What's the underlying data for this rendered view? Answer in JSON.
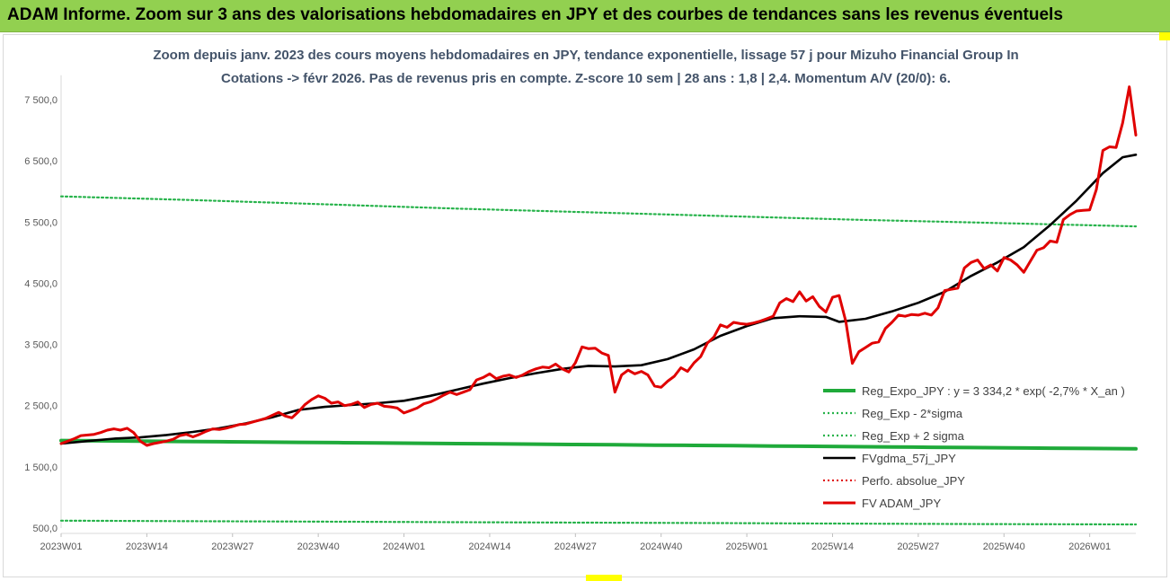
{
  "banner": {
    "title": "ADAM Informe. Zoom sur 3 ans des valorisations hebdomadaires en JPY et des courbes de tendances sans les revenus éventuels"
  },
  "colors": {
    "banner_bg": "#92d050",
    "reg_expo": "#1faa3a",
    "sigma": "#27b34b",
    "fvgdma": "#000000",
    "perfo": "#e00000",
    "fvadam": "#e00000",
    "title_text": "#44546a"
  },
  "chart_data": {
    "type": "line",
    "title": "Zoom depuis janv. 2023 des cours moyens hebdomadaires en JPY, tendance exponentielle, lissage 57 j pour Mizuho Financial Group In",
    "subtitle": "Cotations -> févr 2026.  Pas de revenus pris en compte. Z-score 10 sem | 28 ans : 1,8 | 2,4. Momentum A/V (20/0): 6.",
    "xlabel": "",
    "ylabel": "",
    "ylim": [
      500,
      7900
    ],
    "yticks": [
      "7 500,0",
      "6 500,0",
      "5 500,0",
      "4 500,0",
      "3 500,0",
      "2 500,0",
      "1 500,0",
      "500,0"
    ],
    "ytick_values": [
      7500,
      6500,
      5500,
      4500,
      3500,
      2500,
      1500,
      500
    ],
    "xticks": [
      "2023W01",
      "2023W14",
      "2023W27",
      "2023W40",
      "2024W01",
      "2024W14",
      "2024W27",
      "2024W40",
      "2025W01",
      "2025W14",
      "2025W27",
      "2025W40",
      "2026W01"
    ],
    "xtick_weeks": [
      0,
      13,
      26,
      39,
      52,
      65,
      78,
      91,
      104,
      117,
      130,
      143,
      156
    ],
    "x_range_weeks": [
      0,
      163
    ],
    "legend_position": "bottom-right",
    "series": [
      {
        "name": "Reg_Expo_JPY : y = 3 334,2 * exp( -2,7% *  X_an )",
        "style": "solid-thick",
        "points": [
          [
            0,
            1930
          ],
          [
            6,
            1925
          ],
          [
            12,
            1920
          ],
          [
            18,
            1915
          ],
          [
            24,
            1910
          ],
          [
            30,
            1905
          ],
          [
            36,
            1900
          ],
          [
            42,
            1895
          ],
          [
            48,
            1890
          ],
          [
            54,
            1885
          ],
          [
            60,
            1880
          ],
          [
            66,
            1875
          ],
          [
            72,
            1870
          ],
          [
            78,
            1865
          ],
          [
            84,
            1860
          ],
          [
            90,
            1855
          ],
          [
            96,
            1850
          ],
          [
            102,
            1845
          ],
          [
            108,
            1840
          ],
          [
            114,
            1835
          ],
          [
            120,
            1830
          ],
          [
            126,
            1825
          ],
          [
            132,
            1820
          ],
          [
            138,
            1815
          ],
          [
            144,
            1810
          ],
          [
            150,
            1805
          ],
          [
            156,
            1800
          ],
          [
            163,
            1795
          ]
        ]
      },
      {
        "name": "Reg_Exp - 2*sigma",
        "style": "dotted",
        "points": [
          [
            0,
            620
          ],
          [
            20,
            612
          ],
          [
            40,
            604
          ],
          [
            60,
            596
          ],
          [
            80,
            588
          ],
          [
            100,
            580
          ],
          [
            120,
            572
          ],
          [
            140,
            565
          ],
          [
            163,
            558
          ]
        ]
      },
      {
        "name": "Reg_Exp + 2 sigma",
        "style": "dotted",
        "points": [
          [
            0,
            5920
          ],
          [
            20,
            5860
          ],
          [
            40,
            5790
          ],
          [
            60,
            5720
          ],
          [
            80,
            5660
          ],
          [
            100,
            5600
          ],
          [
            120,
            5540
          ],
          [
            140,
            5490
          ],
          [
            163,
            5430
          ]
        ]
      },
      {
        "name": "FVgdma_57j_JPY",
        "style": "solid",
        "points": [
          [
            0,
            1880
          ],
          [
            4,
            1920
          ],
          [
            8,
            1960
          ],
          [
            12,
            1980
          ],
          [
            16,
            2020
          ],
          [
            20,
            2070
          ],
          [
            24,
            2130
          ],
          [
            28,
            2210
          ],
          [
            32,
            2310
          ],
          [
            36,
            2430
          ],
          [
            40,
            2480
          ],
          [
            44,
            2510
          ],
          [
            48,
            2540
          ],
          [
            52,
            2580
          ],
          [
            56,
            2660
          ],
          [
            60,
            2760
          ],
          [
            64,
            2860
          ],
          [
            68,
            2950
          ],
          [
            72,
            3030
          ],
          [
            76,
            3100
          ],
          [
            80,
            3150
          ],
          [
            84,
            3140
          ],
          [
            88,
            3160
          ],
          [
            92,
            3260
          ],
          [
            96,
            3420
          ],
          [
            100,
            3640
          ],
          [
            104,
            3800
          ],
          [
            108,
            3930
          ],
          [
            112,
            3960
          ],
          [
            116,
            3950
          ],
          [
            118,
            3870
          ],
          [
            122,
            3920
          ],
          [
            126,
            4040
          ],
          [
            130,
            4180
          ],
          [
            134,
            4360
          ],
          [
            138,
            4620
          ],
          [
            142,
            4840
          ],
          [
            146,
            5090
          ],
          [
            150,
            5450
          ],
          [
            154,
            5850
          ],
          [
            158,
            6300
          ],
          [
            161,
            6560
          ],
          [
            163,
            6600
          ]
        ]
      },
      {
        "name": "Perfo. absolue_JPY",
        "style": "dotted-red",
        "points": []
      },
      {
        "name": "FV ADAM_JPY",
        "style": "solid-thick",
        "points": [
          [
            0,
            1880
          ],
          [
            2,
            1960
          ],
          [
            3,
            2010
          ],
          [
            5,
            2030
          ],
          [
            6,
            2060
          ],
          [
            7,
            2100
          ],
          [
            8,
            2120
          ],
          [
            9,
            2100
          ],
          [
            10,
            2130
          ],
          [
            11,
            2060
          ],
          [
            12,
            1920
          ],
          [
            13,
            1850
          ],
          [
            14,
            1880
          ],
          [
            15,
            1900
          ],
          [
            16,
            1920
          ],
          [
            17,
            1950
          ],
          [
            18,
            2010
          ],
          [
            19,
            2030
          ],
          [
            20,
            1990
          ],
          [
            21,
            2030
          ],
          [
            22,
            2080
          ],
          [
            23,
            2120
          ],
          [
            24,
            2110
          ],
          [
            25,
            2130
          ],
          [
            26,
            2160
          ],
          [
            27,
            2190
          ],
          [
            28,
            2200
          ],
          [
            29,
            2230
          ],
          [
            30,
            2260
          ],
          [
            31,
            2290
          ],
          [
            32,
            2340
          ],
          [
            33,
            2390
          ],
          [
            34,
            2330
          ],
          [
            35,
            2300
          ],
          [
            36,
            2400
          ],
          [
            37,
            2520
          ],
          [
            38,
            2600
          ],
          [
            39,
            2660
          ],
          [
            40,
            2620
          ],
          [
            41,
            2540
          ],
          [
            42,
            2560
          ],
          [
            43,
            2500
          ],
          [
            44,
            2520
          ],
          [
            45,
            2560
          ],
          [
            46,
            2470
          ],
          [
            47,
            2520
          ],
          [
            48,
            2540
          ],
          [
            49,
            2490
          ],
          [
            50,
            2480
          ],
          [
            51,
            2460
          ],
          [
            52,
            2380
          ],
          [
            53,
            2420
          ],
          [
            54,
            2460
          ],
          [
            55,
            2530
          ],
          [
            56,
            2560
          ],
          [
            57,
            2610
          ],
          [
            58,
            2670
          ],
          [
            59,
            2720
          ],
          [
            60,
            2680
          ],
          [
            61,
            2720
          ],
          [
            62,
            2760
          ],
          [
            63,
            2920
          ],
          [
            64,
            2960
          ],
          [
            65,
            3020
          ],
          [
            66,
            2940
          ],
          [
            67,
            2980
          ],
          [
            68,
            3000
          ],
          [
            69,
            2960
          ],
          [
            70,
            3000
          ],
          [
            71,
            3060
          ],
          [
            72,
            3100
          ],
          [
            73,
            3130
          ],
          [
            74,
            3120
          ],
          [
            75,
            3180
          ],
          [
            76,
            3100
          ],
          [
            77,
            3050
          ],
          [
            78,
            3200
          ],
          [
            79,
            3460
          ],
          [
            80,
            3430
          ],
          [
            81,
            3440
          ],
          [
            82,
            3360
          ],
          [
            83,
            3320
          ],
          [
            84,
            2720
          ],
          [
            85,
            3000
          ],
          [
            86,
            3080
          ],
          [
            87,
            3020
          ],
          [
            88,
            3060
          ],
          [
            89,
            3000
          ],
          [
            90,
            2820
          ],
          [
            91,
            2800
          ],
          [
            92,
            2900
          ],
          [
            93,
            2980
          ],
          [
            94,
            3120
          ],
          [
            95,
            3060
          ],
          [
            96,
            3200
          ],
          [
            97,
            3300
          ],
          [
            98,
            3520
          ],
          [
            99,
            3620
          ],
          [
            100,
            3820
          ],
          [
            101,
            3780
          ],
          [
            102,
            3860
          ],
          [
            103,
            3840
          ],
          [
            104,
            3830
          ],
          [
            105,
            3850
          ],
          [
            106,
            3880
          ],
          [
            107,
            3920
          ],
          [
            108,
            3960
          ],
          [
            109,
            4180
          ],
          [
            110,
            4250
          ],
          [
            111,
            4200
          ],
          [
            112,
            4360
          ],
          [
            113,
            4210
          ],
          [
            114,
            4280
          ],
          [
            115,
            4120
          ],
          [
            116,
            4030
          ],
          [
            117,
            4270
          ],
          [
            118,
            4300
          ],
          [
            119,
            3880
          ],
          [
            120,
            3190
          ],
          [
            121,
            3380
          ],
          [
            122,
            3450
          ],
          [
            123,
            3520
          ],
          [
            124,
            3540
          ],
          [
            125,
            3760
          ],
          [
            126,
            3860
          ],
          [
            127,
            3980
          ],
          [
            128,
            3960
          ],
          [
            129,
            3990
          ],
          [
            130,
            3980
          ],
          [
            131,
            4010
          ],
          [
            132,
            3980
          ],
          [
            133,
            4100
          ],
          [
            134,
            4380
          ],
          [
            135,
            4400
          ],
          [
            136,
            4420
          ],
          [
            137,
            4750
          ],
          [
            138,
            4840
          ],
          [
            139,
            4880
          ],
          [
            140,
            4740
          ],
          [
            141,
            4800
          ],
          [
            142,
            4700
          ],
          [
            143,
            4920
          ],
          [
            144,
            4880
          ],
          [
            145,
            4800
          ],
          [
            146,
            4680
          ],
          [
            147,
            4860
          ],
          [
            148,
            5040
          ],
          [
            149,
            5080
          ],
          [
            150,
            5190
          ],
          [
            151,
            5170
          ],
          [
            152,
            5540
          ],
          [
            153,
            5620
          ],
          [
            154,
            5680
          ],
          [
            155,
            5690
          ],
          [
            156,
            5700
          ],
          [
            157,
            6030
          ],
          [
            158,
            6670
          ],
          [
            159,
            6730
          ],
          [
            160,
            6720
          ],
          [
            161,
            7120
          ],
          [
            162,
            7710
          ],
          [
            163,
            6920
          ]
        ]
      }
    ]
  }
}
